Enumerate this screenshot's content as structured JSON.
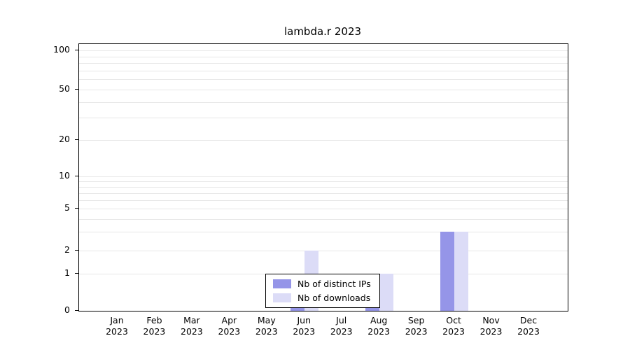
{
  "chart_data": {
    "type": "bar",
    "title": "lambda.r 2023",
    "year_label": "2023",
    "categories": [
      "Jan",
      "Feb",
      "Mar",
      "Apr",
      "May",
      "Jun",
      "Jul",
      "Aug",
      "Sep",
      "Oct",
      "Nov",
      "Dec"
    ],
    "series": [
      {
        "name": "Nb of distinct IPs",
        "color": "#9595e8",
        "values": [
          0,
          0,
          0,
          0,
          0,
          1,
          0,
          1,
          0,
          3,
          0,
          0
        ]
      },
      {
        "name": "Nb of downloads",
        "color": "#dcdcf7",
        "values": [
          0,
          0,
          0,
          0,
          0,
          2,
          0,
          1,
          0,
          3,
          0,
          0
        ]
      }
    ],
    "xlabel": "",
    "ylabel": "",
    "yticks": [
      0,
      1,
      2,
      5,
      10,
      20,
      50,
      100
    ],
    "ylim": [
      0,
      120
    ],
    "y_scale": "log-like",
    "gridlines": [
      1,
      2,
      3,
      4,
      5,
      6,
      7,
      8,
      9,
      10,
      20,
      30,
      40,
      50,
      60,
      70,
      80,
      90,
      100
    ],
    "scale_anchors": [
      [
        0,
        0
      ],
      [
        1,
        0.139
      ],
      [
        2,
        0.226
      ],
      [
        5,
        0.383
      ],
      [
        10,
        0.504
      ],
      [
        20,
        0.64
      ],
      [
        50,
        0.829
      ],
      [
        100,
        0.976
      ]
    ],
    "grid_on": true,
    "grid_color": "#e7e7e7",
    "axis_color": "#000000",
    "legend_position": "bottom-center"
  }
}
